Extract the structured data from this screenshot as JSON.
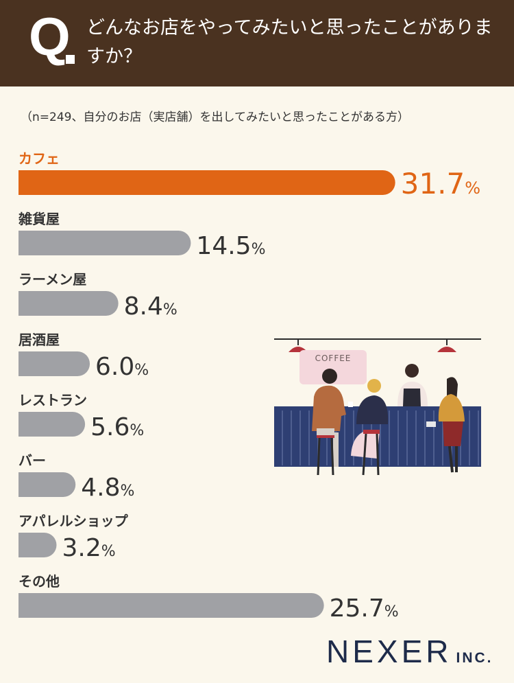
{
  "header": {
    "q_label": "Q",
    "question": "どんなお店をやってみたいと思ったことがありますか？"
  },
  "note": "（n=249、自分のお店（実店舗）を出してみたいと思ったことがある方）",
  "chart_data": {
    "type": "bar",
    "orientation": "horizontal",
    "categories": [
      "カフェ",
      "雑貨屋",
      "ラーメン屋",
      "居酒屋",
      "レストラン",
      "バー",
      "アパレルショップ",
      "その他"
    ],
    "values": [
      31.7,
      14.5,
      8.4,
      6.0,
      5.6,
      4.8,
      3.2,
      25.7
    ],
    "value_labels": [
      "31.7",
      "14.5",
      "8.4",
      "6.0",
      "5.6",
      "4.8",
      "3.2",
      "25.7"
    ],
    "unit": "%",
    "highlight_index": 0,
    "colors": {
      "highlight": "#e06515",
      "normal": "#a0a1a5",
      "label_highlight": "#e06515",
      "label_normal": "#333333"
    }
  },
  "illustration": {
    "sign_text": "COFFEE",
    "colors": {
      "counter": "#2e3f73",
      "sign": "#f4d7dc",
      "lamp": "#b5343b"
    }
  },
  "logo": {
    "main": "NEXER",
    "suffix": "INC."
  }
}
